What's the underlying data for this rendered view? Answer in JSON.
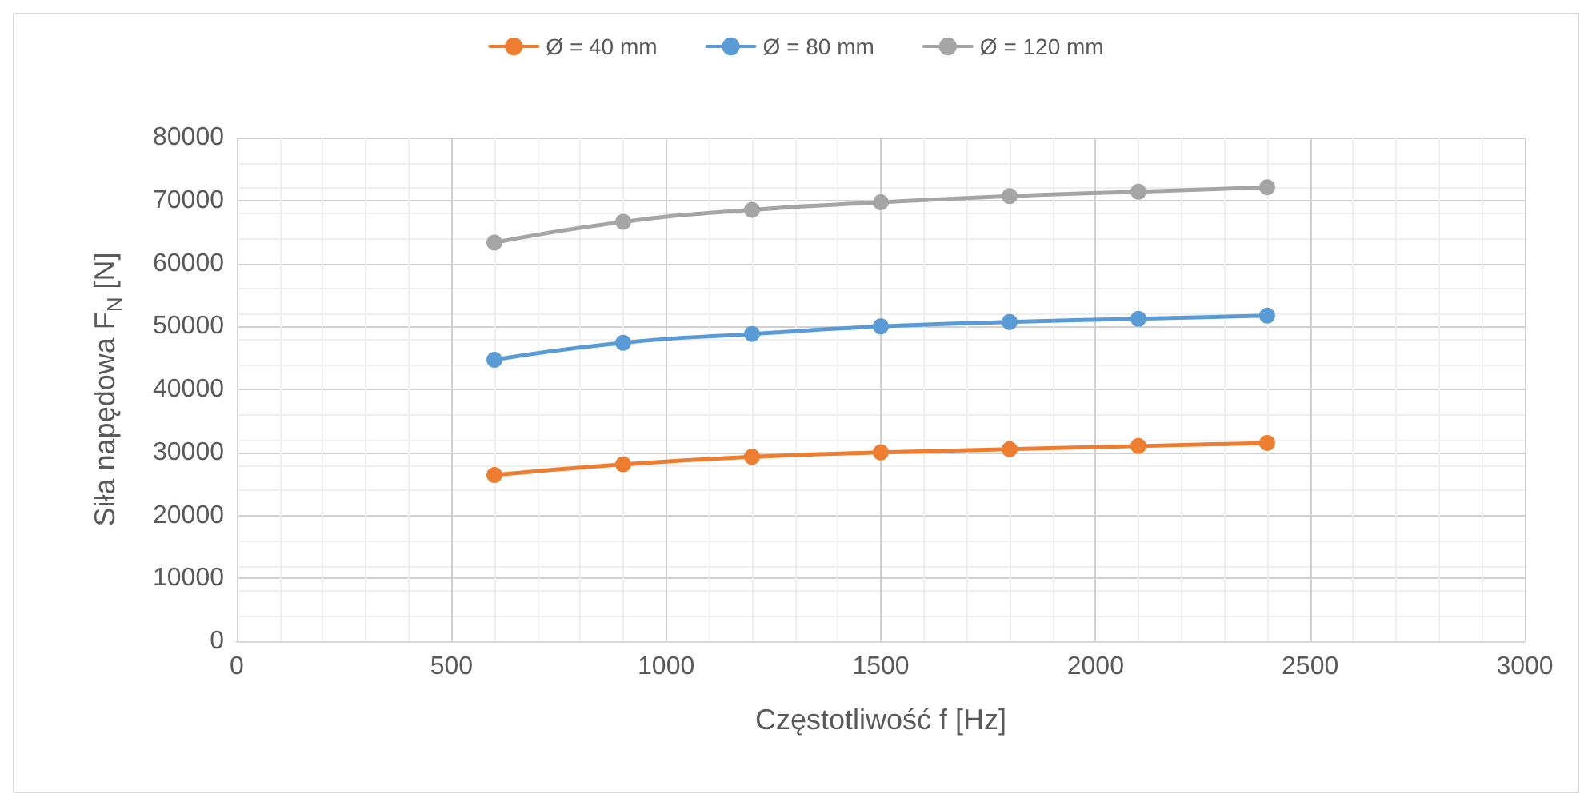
{
  "chart_data": {
    "type": "line",
    "xlabel": "Częstotliwość f [Hz]",
    "ylabel": "Siła napędowa F$_{N}$ [N]",
    "x": [
      600,
      900,
      1200,
      1500,
      1800,
      2100,
      2400
    ],
    "series": [
      {
        "name": "Ø = 40 mm",
        "color": "#ed7d31",
        "values": [
          26400,
          28100,
          29300,
          30000,
          30500,
          31000,
          31500
        ]
      },
      {
        "name": "Ø = 80 mm",
        "color": "#5b9bd5",
        "values": [
          44700,
          47400,
          48800,
          50000,
          50700,
          51200,
          51700
        ]
      },
      {
        "name": "Ø = 120 mm",
        "color": "#a5a5a5",
        "values": [
          63300,
          66600,
          68500,
          69700,
          70700,
          71400,
          72100
        ]
      }
    ],
    "xlim": [
      0,
      3000
    ],
    "xticks": [
      0,
      500,
      1000,
      1500,
      2000,
      2500,
      3000
    ],
    "ylim": [
      0,
      80000
    ],
    "yticks": [
      0,
      10000,
      20000,
      30000,
      40000,
      50000,
      60000,
      70000,
      80000
    ],
    "grid": true,
    "legend": "top",
    "marker": "circle",
    "line_style": "solid"
  }
}
